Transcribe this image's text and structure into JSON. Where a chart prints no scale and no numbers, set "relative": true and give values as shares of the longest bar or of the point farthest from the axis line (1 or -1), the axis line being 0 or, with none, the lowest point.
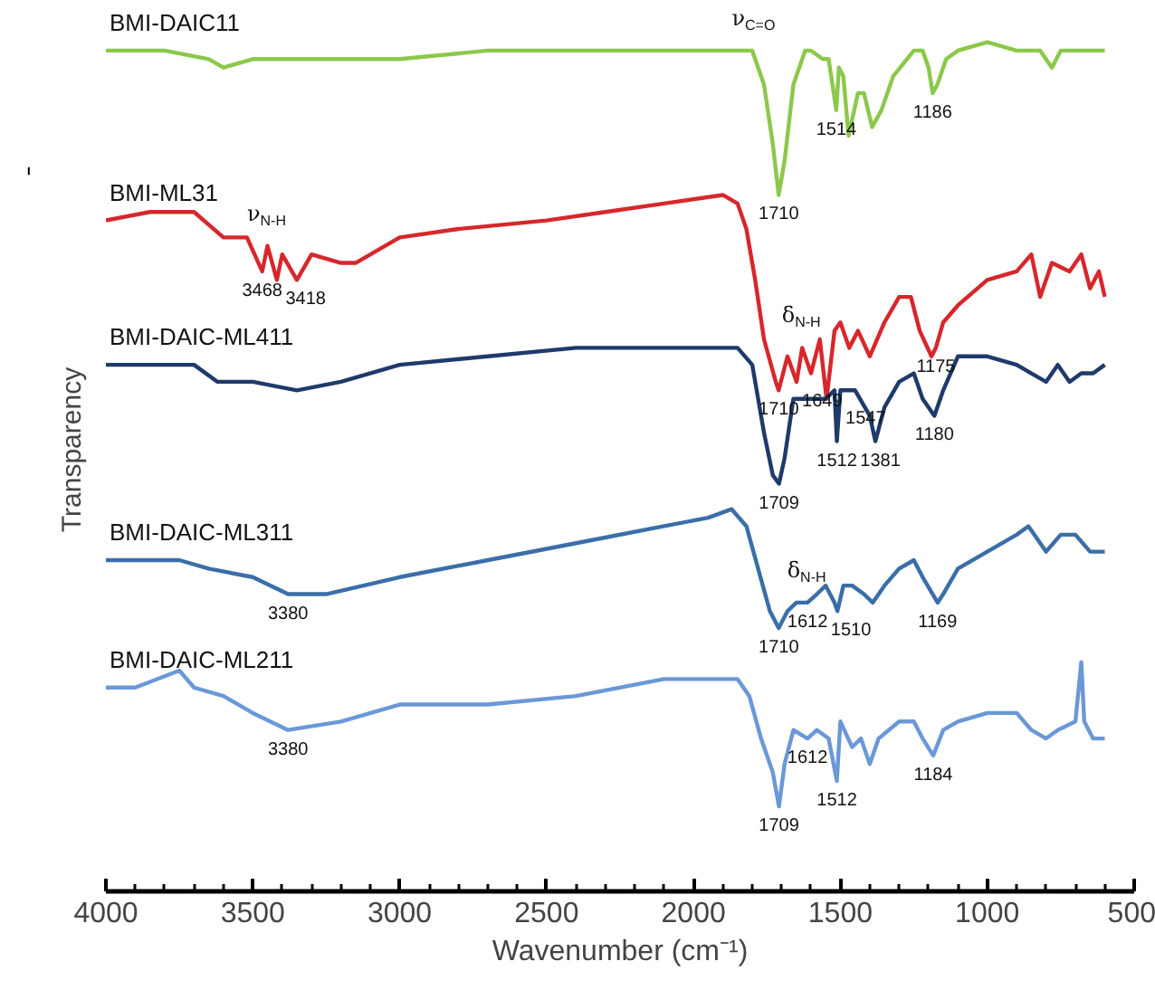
{
  "chart_data": {
    "type": "line",
    "relative": true,
    "xlabel": "Wavenumber (cm⁻¹)",
    "ylabel": "Transparency",
    "xlim": [
      4000,
      500
    ],
    "xticks": [
      4000,
      {
        "value": 3900,
        "label": null
      },
      {
        "value": 3800,
        "label": null
      },
      {
        "value": 3700,
        "label": null
      },
      {
        "value": 3600,
        "label": null
      },
      3500,
      {
        "value": 3400,
        "label": null
      },
      {
        "value": 3300,
        "label": null
      },
      {
        "value": 3200,
        "label": null
      },
      {
        "value": 3100,
        "label": null
      },
      3000,
      {
        "value": 2900,
        "label": null
      },
      {
        "value": 2800,
        "label": null
      },
      {
        "value": 2700,
        "label": null
      },
      {
        "value": 2600,
        "label": null
      },
      2500,
      {
        "value": 2400,
        "label": null
      },
      {
        "value": 2300,
        "label": null
      },
      {
        "value": 2200,
        "label": null
      },
      {
        "value": 2100,
        "label": null
      },
      2000,
      {
        "value": 1900,
        "label": null
      },
      {
        "value": 1800,
        "label": null
      },
      {
        "value": 1700,
        "label": null
      },
      {
        "value": 1600,
        "label": null
      },
      1500,
      {
        "value": 1400,
        "label": null
      },
      {
        "value": 1300,
        "label": null
      },
      {
        "value": 1200,
        "label": null
      },
      {
        "value": 1100,
        "label": null
      },
      1000,
      {
        "value": 900,
        "label": null
      },
      {
        "value": 800,
        "label": null
      },
      {
        "value": 700,
        "label": null
      },
      {
        "value": 600,
        "label": null
      },
      500
    ],
    "grid": false,
    "marker": "none",
    "line_style": "solid",
    "series": [
      {
        "name": "BMI-DAIC11",
        "color": "#8cc84b",
        "x": [
          4000,
          3800,
          3650,
          3600,
          3500,
          3300,
          3000,
          2700,
          2400,
          2200,
          2000,
          1850,
          1800,
          1760,
          1730,
          1710,
          1690,
          1660,
          1620,
          1600,
          1560,
          1540,
          1514,
          1505,
          1490,
          1472,
          1440,
          1420,
          1392,
          1360,
          1320,
          1250,
          1220,
          1200,
          1186,
          1170,
          1140,
          1100,
          1000,
          900,
          820,
          780,
          750,
          700,
          650,
          600
        ],
        "values": [
          0.99,
          0.99,
          0.98,
          0.97,
          0.98,
          0.98,
          0.98,
          0.99,
          0.99,
          0.99,
          0.99,
          0.99,
          0.99,
          0.95,
          0.88,
          0.82,
          0.86,
          0.95,
          0.99,
          0.99,
          0.98,
          0.98,
          0.92,
          0.97,
          0.96,
          0.89,
          0.94,
          0.94,
          0.9,
          0.92,
          0.96,
          0.99,
          0.99,
          0.97,
          0.94,
          0.95,
          0.98,
          0.99,
          1.0,
          0.99,
          0.99,
          0.97,
          0.99,
          0.99,
          0.99,
          0.99
        ]
      },
      {
        "name": "BMI-ML31",
        "color": "#d7272c",
        "x": [
          4000,
          3850,
          3700,
          3600,
          3520,
          3468,
          3450,
          3418,
          3400,
          3350,
          3300,
          3200,
          3150,
          3000,
          2800,
          2500,
          2300,
          2100,
          1900,
          1850,
          1820,
          1790,
          1760,
          1720,
          1710,
          1680,
          1649,
          1630,
          1600,
          1570,
          1547,
          1520,
          1500,
          1470,
          1440,
          1400,
          1350,
          1300,
          1260,
          1230,
          1190,
          1175,
          1150,
          1100,
          1000,
          900,
          850,
          820,
          780,
          720,
          680,
          650,
          620,
          600
        ],
        "values": [
          0.79,
          0.8,
          0.8,
          0.77,
          0.77,
          0.73,
          0.76,
          0.72,
          0.75,
          0.72,
          0.75,
          0.74,
          0.74,
          0.77,
          0.78,
          0.79,
          0.8,
          0.81,
          0.82,
          0.81,
          0.78,
          0.72,
          0.65,
          0.6,
          0.59,
          0.63,
          0.6,
          0.64,
          0.61,
          0.65,
          0.58,
          0.66,
          0.67,
          0.64,
          0.66,
          0.63,
          0.67,
          0.7,
          0.7,
          0.66,
          0.63,
          0.64,
          0.67,
          0.69,
          0.72,
          0.73,
          0.75,
          0.7,
          0.74,
          0.73,
          0.75,
          0.71,
          0.73,
          0.7
        ]
      },
      {
        "name": "BMI-DAIC-ML411",
        "color": "#1f3a6b",
        "x": [
          4000,
          3700,
          3620,
          3500,
          3350,
          3200,
          3000,
          2700,
          2400,
          2100,
          1900,
          1850,
          1800,
          1760,
          1730,
          1709,
          1690,
          1660,
          1600,
          1550,
          1520,
          1512,
          1500,
          1450,
          1400,
          1381,
          1350,
          1300,
          1250,
          1220,
          1180,
          1150,
          1100,
          1000,
          900,
          850,
          800,
          760,
          720,
          680,
          640,
          600
        ],
        "values": [
          0.62,
          0.62,
          0.6,
          0.6,
          0.59,
          0.6,
          0.62,
          0.63,
          0.64,
          0.64,
          0.64,
          0.64,
          0.62,
          0.54,
          0.49,
          0.48,
          0.51,
          0.58,
          0.58,
          0.58,
          0.59,
          0.53,
          0.59,
          0.59,
          0.56,
          0.53,
          0.57,
          0.6,
          0.61,
          0.58,
          0.56,
          0.59,
          0.63,
          0.63,
          0.62,
          0.61,
          0.6,
          0.62,
          0.6,
          0.61,
          0.61,
          0.62
        ]
      },
      {
        "name": "BMI-DAIC-ML311",
        "color": "#3a6ea8",
        "x": [
          4000,
          3750,
          3650,
          3500,
          3380,
          3250,
          3000,
          2700,
          2400,
          2100,
          1950,
          1870,
          1820,
          1780,
          1740,
          1710,
          1680,
          1650,
          1612,
          1580,
          1550,
          1520,
          1510,
          1490,
          1460,
          1420,
          1390,
          1350,
          1300,
          1250,
          1220,
          1169,
          1150,
          1100,
          1000,
          900,
          860,
          800,
          750,
          700,
          650,
          600
        ],
        "values": [
          0.39,
          0.39,
          0.38,
          0.37,
          0.35,
          0.35,
          0.37,
          0.39,
          0.41,
          0.43,
          0.44,
          0.45,
          0.43,
          0.38,
          0.33,
          0.31,
          0.33,
          0.34,
          0.34,
          0.35,
          0.36,
          0.34,
          0.33,
          0.36,
          0.36,
          0.35,
          0.34,
          0.36,
          0.38,
          0.39,
          0.37,
          0.34,
          0.35,
          0.38,
          0.4,
          0.42,
          0.43,
          0.4,
          0.42,
          0.42,
          0.4,
          0.4
        ]
      },
      {
        "name": "BMI-DAIC-ML211",
        "color": "#6a98d8",
        "x": [
          4000,
          3900,
          3750,
          3700,
          3600,
          3500,
          3380,
          3200,
          3000,
          2700,
          2400,
          2100,
          1900,
          1850,
          1810,
          1770,
          1730,
          1709,
          1690,
          1660,
          1612,
          1580,
          1540,
          1512,
          1500,
          1460,
          1430,
          1400,
          1370,
          1300,
          1250,
          1220,
          1184,
          1150,
          1100,
          1000,
          900,
          850,
          800,
          760,
          700,
          680,
          670,
          640,
          600
        ],
        "values": [
          0.24,
          0.24,
          0.26,
          0.24,
          0.23,
          0.21,
          0.19,
          0.2,
          0.22,
          0.22,
          0.23,
          0.25,
          0.25,
          0.25,
          0.23,
          0.18,
          0.14,
          0.1,
          0.15,
          0.19,
          0.18,
          0.19,
          0.18,
          0.13,
          0.2,
          0.17,
          0.18,
          0.15,
          0.18,
          0.2,
          0.2,
          0.18,
          0.16,
          0.19,
          0.2,
          0.21,
          0.21,
          0.19,
          0.18,
          0.19,
          0.2,
          0.27,
          0.2,
          0.18,
          0.18
        ]
      }
    ],
    "annotations": [
      {
        "text": "ν$_{C=O}$",
        "x": 1800,
        "y": 0.99
      },
      {
        "text": "1710",
        "x": 1710,
        "y": 0.82
      },
      {
        "text": "1514",
        "x": 1514,
        "y": 0.92
      },
      {
        "text": "1186",
        "x": 1186,
        "y": 0.94
      },
      {
        "text": "ν$_{N-H}$",
        "x": 3450,
        "y": 0.76
      },
      {
        "text": "3468",
        "x": 3468,
        "y": 0.73
      },
      {
        "text": "3418",
        "x": 3418,
        "y": 0.72
      },
      {
        "text": "1710",
        "x": 1710,
        "y": 0.59
      },
      {
        "text": "δ$_{N-H}$",
        "x": 1630,
        "y": 0.64
      },
      {
        "text": "1649",
        "x": 1649,
        "y": 0.6
      },
      {
        "text": "1547",
        "x": 1547,
        "y": 0.58
      },
      {
        "text": "1175",
        "x": 1175,
        "y": 0.64
      },
      {
        "text": "1709",
        "x": 1709,
        "y": 0.48
      },
      {
        "text": "1512",
        "x": 1512,
        "y": 0.53
      },
      {
        "text": "1381",
        "x": 1381,
        "y": 0.53
      },
      {
        "text": "1180",
        "x": 1180,
        "y": 0.56
      },
      {
        "text": "3380",
        "x": 3380,
        "y": 0.35
      },
      {
        "text": "δ$_{N-H}$",
        "x": 1612,
        "y": 0.34
      },
      {
        "text": "1612",
        "x": 1612,
        "y": 0.34
      },
      {
        "text": "1510",
        "x": 1510,
        "y": 0.33
      },
      {
        "text": "1710",
        "x": 1710,
        "y": 0.31
      },
      {
        "text": "1169",
        "x": 1169,
        "y": 0.34
      },
      {
        "text": "3380",
        "x": 3380,
        "y": 0.19
      },
      {
        "text": "1612",
        "x": 1612,
        "y": 0.18
      },
      {
        "text": "1512",
        "x": 1512,
        "y": 0.13
      },
      {
        "text": "1709",
        "x": 1709,
        "y": 0.1
      },
      {
        "text": "1184",
        "x": 1184,
        "y": 0.16
      }
    ]
  }
}
